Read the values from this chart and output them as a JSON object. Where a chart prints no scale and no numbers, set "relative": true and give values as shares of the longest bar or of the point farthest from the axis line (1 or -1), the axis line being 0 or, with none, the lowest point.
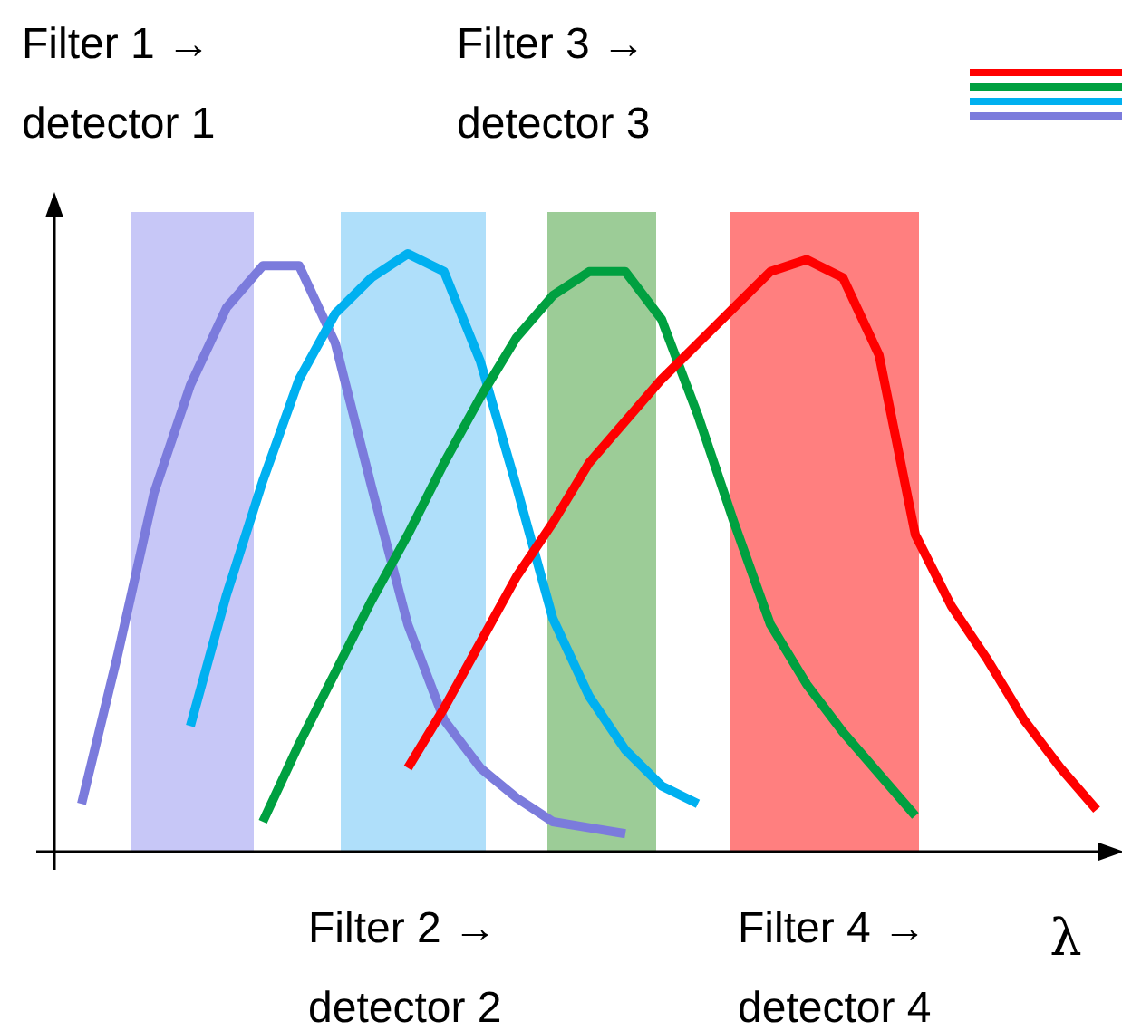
{
  "chart_data": {
    "type": "line",
    "relative": true,
    "xlabel": "λ",
    "marker": "none",
    "line_style": "solid",
    "categories": [
      null,
      null,
      null,
      null,
      null,
      null,
      null,
      null,
      null,
      null,
      null,
      null,
      null,
      null,
      null,
      null,
      null,
      null,
      null,
      null,
      null,
      null,
      null,
      null,
      null,
      null,
      null,
      null,
      null
    ],
    "series": [
      {
        "color": "#7b7bdc",
        "values": [
          0.08,
          0.33,
          0.6,
          0.78,
          0.91,
          0.98,
          0.98,
          0.85,
          0.61,
          0.38,
          0.22,
          0.14,
          0.09,
          0.05,
          0.04,
          0.03,
          null,
          null,
          null,
          null,
          null,
          null,
          null,
          null,
          null,
          null,
          null,
          null,
          null
        ]
      },
      {
        "color": "#00b0f0",
        "values": [
          null,
          null,
          null,
          0.21,
          0.43,
          0.62,
          0.79,
          0.9,
          0.96,
          1,
          0.97,
          0.82,
          0.61,
          0.39,
          0.26,
          0.17,
          0.11,
          0.08,
          null,
          null,
          null,
          null,
          null,
          null,
          null,
          null,
          null,
          null,
          null
        ]
      },
      {
        "color": "#00a040",
        "values": [
          null,
          null,
          null,
          null,
          null,
          0.05,
          0.18,
          0.3,
          0.42,
          0.53,
          0.65,
          0.76,
          0.86,
          0.93,
          0.97,
          0.97,
          0.89,
          0.73,
          0.55,
          0.38,
          0.28,
          0.2,
          0.13,
          0.06,
          null,
          null,
          null,
          null,
          null
        ]
      },
      {
        "color": "#ff0000",
        "values": [
          null,
          null,
          null,
          null,
          null,
          null,
          null,
          null,
          null,
          0.14,
          0.24,
          0.35,
          0.46,
          0.55,
          0.65,
          0.72,
          0.79,
          0.85,
          0.91,
          0.97,
          0.99,
          0.96,
          0.83,
          0.53,
          0.41,
          0.32,
          0.22,
          0.14,
          0.07
        ]
      }
    ],
    "annotations": [
      "Filter 1 →\ndetector 1",
      "Filter 2 →\ndetector 2",
      "Filter 3 →\ndetector 3",
      "Filter 4 →\ndetector 4"
    ]
  }
}
